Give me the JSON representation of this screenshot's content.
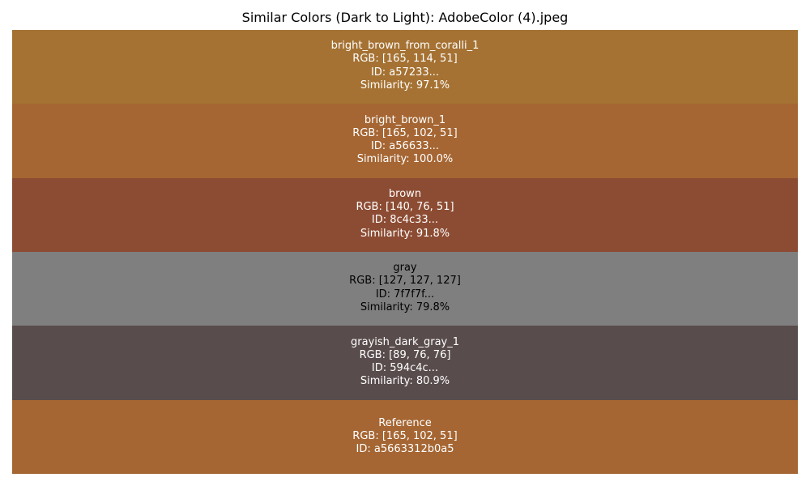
{
  "chart_data": {
    "type": "table",
    "title": "Similar Colors (Dark to Light): AdobeColor (4).jpeg",
    "swatches": [
      {
        "name": "bright_brown_from_coralli_1",
        "rgb": "RGB: [165, 114, 51]",
        "id": "ID: a57233...",
        "similarity": "Similarity: 97.1%",
        "color": "#a57233",
        "text_color": "#ffffff"
      },
      {
        "name": "bright_brown_1",
        "rgb": "RGB: [165, 102, 51]",
        "id": "ID: a56633...",
        "similarity": "Similarity: 100.0%",
        "color": "#a56633",
        "text_color": "#ffffff"
      },
      {
        "name": "brown",
        "rgb": "RGB: [140, 76, 51]",
        "id": "ID: 8c4c33...",
        "similarity": "Similarity: 91.8%",
        "color": "#8c4c33",
        "text_color": "#ffffff"
      },
      {
        "name": "gray",
        "rgb": "RGB: [127, 127, 127]",
        "id": "ID: 7f7f7f...",
        "similarity": "Similarity: 79.8%",
        "color": "#7f7f7f",
        "text_color": "#000000"
      },
      {
        "name": "grayish_dark_gray_1",
        "rgb": "RGB: [89, 76, 76]",
        "id": "ID: 594c4c...",
        "similarity": "Similarity: 80.9%",
        "color": "#594c4c",
        "text_color": "#ffffff"
      },
      {
        "name": "Reference",
        "rgb": "RGB: [165, 102, 51]",
        "id": "ID: a5663312b0a5",
        "similarity": null,
        "color": "#a56633",
        "text_color": "#ffffff"
      }
    ]
  }
}
